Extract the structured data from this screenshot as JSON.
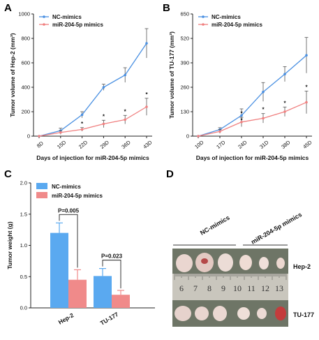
{
  "chart_data": [
    {
      "panel": "A",
      "type": "line",
      "ylabel": "Tumor volume of Hep-2 (mm³)",
      "xlabel": "Days of injection for miR-204-5p mimics",
      "categories": [
        "8D",
        "15D",
        "22D",
        "29D",
        "36D",
        "43D"
      ],
      "ylim": [
        0,
        1000
      ],
      "yticks": [
        0,
        200,
        400,
        600,
        800,
        1000
      ],
      "legend_position": "top-left",
      "series": [
        {
          "name": "NC-mimics",
          "color": "#4a90e2",
          "values": [
            0,
            45,
            175,
            400,
            500,
            760
          ],
          "errors": [
            0,
            20,
            25,
            25,
            60,
            120
          ]
        },
        {
          "name": "miR-204-5p mimics",
          "color": "#f08080",
          "values": [
            0,
            30,
            55,
            100,
            135,
            240
          ],
          "errors": [
            0,
            15,
            15,
            30,
            35,
            70
          ]
        }
      ],
      "significance_marks": [
        "",
        "",
        "*",
        "*",
        "*",
        "*"
      ]
    },
    {
      "panel": "B",
      "type": "line",
      "ylabel": "Tumor volume of TU-177 (mm³)",
      "xlabel": "Days of injection for miR-204-5p mimics",
      "categories": [
        "10D",
        "17D",
        "24D",
        "31D",
        "38D",
        "45D"
      ],
      "ylim": [
        0,
        650
      ],
      "yticks": [
        0,
        130,
        260,
        390,
        520,
        650
      ],
      "legend_position": "top-left",
      "series": [
        {
          "name": "NC-mimics",
          "color": "#4a90e2",
          "values": [
            0,
            35,
            110,
            235,
            330,
            430
          ],
          "errors": [
            0,
            10,
            35,
            50,
            40,
            95
          ]
        },
        {
          "name": "miR-204-5p mimics",
          "color": "#f08080",
          "values": [
            0,
            25,
            75,
            95,
            130,
            180
          ],
          "errors": [
            0,
            10,
            25,
            25,
            25,
            60
          ]
        }
      ],
      "significance_marks": [
        "",
        "",
        "*\n*",
        "*",
        "*",
        "*"
      ]
    },
    {
      "panel": "C",
      "type": "bar",
      "ylabel": "Tumor weight (g)",
      "categories": [
        "Hep-2",
        "TU-177"
      ],
      "ylim": [
        0,
        2.0
      ],
      "yticks": [
        "0.0",
        "0.5",
        "1.0",
        "1.5",
        "2.0"
      ],
      "legend_position": "top-left",
      "series": [
        {
          "name": "NC-mimics",
          "color": "#5aa9f0",
          "values": [
            1.2,
            0.51
          ],
          "errors": [
            0.16,
            0.12
          ]
        },
        {
          "name": "miR-204-5p mimics",
          "color": "#f08a8a",
          "values": [
            0.45,
            0.21
          ],
          "errors": [
            0.16,
            0.07
          ]
        }
      ],
      "annotations": [
        "P=0.005",
        "P=0.023"
      ]
    }
  ],
  "panels": {
    "a": {
      "letter": "A"
    },
    "b": {
      "letter": "B"
    },
    "c": {
      "letter": "C"
    },
    "d": {
      "letter": "D",
      "group_labels": [
        "NC-mimics",
        "miR-204-5p mimics"
      ],
      "row_labels": [
        "Hep-2",
        "TU-177"
      ],
      "ruler_numbers": [
        "6",
        "7",
        "8",
        "9",
        "10",
        "11",
        "12",
        "13"
      ]
    }
  }
}
